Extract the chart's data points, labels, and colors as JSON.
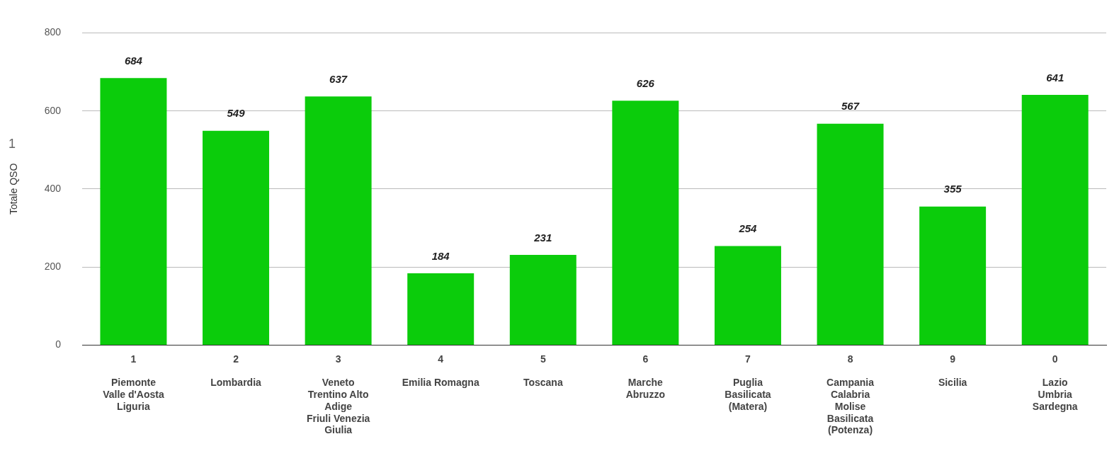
{
  "chart_data": {
    "type": "bar",
    "ylabel": "Totale QSO",
    "categories": [
      "1\nPiemonte\nValle d'Aosta\nLiguria",
      "2\nLombardia",
      "3\nVeneto\nTrentino Alto\nAdige\nFriuli Venezia\nGiulia",
      "4\nEmilia Romagna",
      "5\nToscana",
      "6\nMarche\nAbruzzo",
      "7\nPuglia\nBasilicata\n(Matera)",
      "8\nCampania\nCalabria\nMolise\nBasilicata\n(Potenza)",
      "9\nSicilia",
      "0\nLazio\nUmbria\nSardegna"
    ],
    "values": [
      684,
      549,
      637,
      184,
      231,
      626,
      254,
      567,
      355,
      641
    ],
    "color": "#0bcc0b",
    "ylim": [
      0,
      800
    ],
    "yticks": [
      0,
      200,
      400,
      600,
      800
    ],
    "grid": "y",
    "data_labels": true,
    "legend": false,
    "annotations": [
      "1"
    ]
  }
}
